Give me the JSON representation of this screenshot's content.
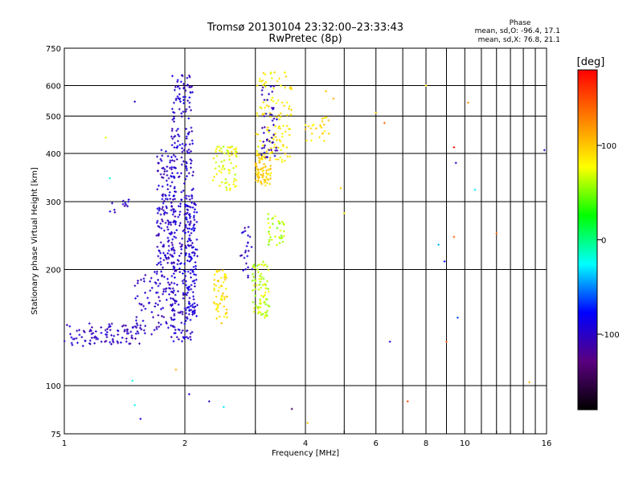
{
  "chart_data": {
    "type": "scatter",
    "title": "Tromsø 20130104 23:32:00–23:33:43",
    "subtitle": "RwPretec (8p)",
    "xlabel": "Frequency [MHz]",
    "ylabel": "Stationary phase Virtual Height [km]",
    "x_scale": "log2",
    "y_scale": "log",
    "xlim": [
      1,
      16
    ],
    "ylim": [
      75,
      750
    ],
    "x_ticks": [
      1,
      2,
      4,
      6,
      8,
      10,
      16
    ],
    "x_tick_labels": [
      "1",
      "2",
      "4",
      "6",
      "8",
      "10",
      "16"
    ],
    "y_ticks": [
      75,
      100,
      200,
      300,
      400,
      500,
      600,
      750
    ],
    "y_tick_labels": [
      "75",
      "100",
      "200",
      "300",
      "400",
      "500",
      "600",
      "750"
    ],
    "grid": true,
    "stats": {
      "heading": "Phase",
      "line_o": "mean, sd,O: -96.4, 17.1",
      "line_x": "mean, sd,X: 76.8, 21.1"
    },
    "colorbar": {
      "title": "[deg]",
      "range": [
        -180,
        180
      ],
      "tick_values": [
        -100,
        0,
        100
      ],
      "tick_labels": [
        "-100",
        "0",
        "100"
      ],
      "stops": [
        "#000000",
        "#5a0080",
        "#0000ff",
        "#00ffff",
        "#00ff00",
        "#ffff00",
        "#ff8000",
        "#ff0000"
      ]
    },
    "clusters": [
      {
        "f": [
          1.0,
          1.2
        ],
        "h": [
          125,
          145
        ],
        "phase": -100,
        "n": 35
      },
      {
        "f": [
          1.2,
          1.55
        ],
        "h": [
          128,
          145
        ],
        "phase": -105,
        "n": 60
      },
      {
        "f": [
          1.3,
          1.45
        ],
        "h": [
          280,
          310
        ],
        "phase": -100,
        "n": 12
      },
      {
        "f": [
          1.5,
          1.7
        ],
        "h": [
          135,
          200
        ],
        "phase": -100,
        "n": 45
      },
      {
        "f": [
          1.7,
          1.9
        ],
        "h": [
          140,
          410
        ],
        "phase": -100,
        "n": 220
      },
      {
        "f": [
          1.85,
          2.1
        ],
        "h": [
          130,
          650
        ],
        "phase": -98,
        "n": 300
      },
      {
        "f": [
          2.0,
          2.15
        ],
        "h": [
          150,
          300
        ],
        "phase": -95,
        "n": 120
      },
      {
        "f": [
          2.35,
          2.55
        ],
        "h": [
          145,
          200
        ],
        "phase": 90,
        "n": 60
      },
      {
        "f": [
          2.35,
          2.7
        ],
        "h": [
          320,
          420
        ],
        "phase": 75,
        "n": 70
      },
      {
        "f": [
          2.75,
          2.95
        ],
        "h": [
          190,
          260
        ],
        "phase": -100,
        "n": 25
      },
      {
        "f": [
          2.95,
          3.25
        ],
        "h": [
          150,
          210
        ],
        "phase": 65,
        "n": 80
      },
      {
        "f": [
          3.0,
          3.3
        ],
        "h": [
          330,
          400
        ],
        "phase": 95,
        "n": 80
      },
      {
        "f": [
          3.2,
          3.55
        ],
        "h": [
          230,
          280
        ],
        "phase": 60,
        "n": 35
      },
      {
        "f": [
          3.0,
          3.7
        ],
        "h": [
          380,
          650
        ],
        "phase": 85,
        "n": 120
      },
      {
        "f": [
          3.1,
          3.4
        ],
        "h": [
          390,
          600
        ],
        "phase": -100,
        "n": 45
      },
      {
        "f": [
          4.0,
          4.6
        ],
        "h": [
          430,
          500
        ],
        "phase": 90,
        "n": 25
      }
    ],
    "isolated_points": [
      {
        "f": 1.27,
        "h": 440,
        "phase": 70
      },
      {
        "f": 1.5,
        "h": 545,
        "phase": -100
      },
      {
        "f": 1.3,
        "h": 345,
        "phase": -20
      },
      {
        "f": 1.48,
        "h": 103,
        "phase": -20
      },
      {
        "f": 1.5,
        "h": 89,
        "phase": -20
      },
      {
        "f": 1.55,
        "h": 82,
        "phase": -90
      },
      {
        "f": 1.9,
        "h": 110,
        "phase": 110
      },
      {
        "f": 2.05,
        "h": 95,
        "phase": -90
      },
      {
        "f": 2.3,
        "h": 91,
        "phase": -100
      },
      {
        "f": 2.5,
        "h": 88,
        "phase": -30
      },
      {
        "f": 3.7,
        "h": 87,
        "phase": -140
      },
      {
        "f": 4.05,
        "h": 80,
        "phase": 100
      },
      {
        "f": 4.5,
        "h": 580,
        "phase": 100
      },
      {
        "f": 4.7,
        "h": 555,
        "phase": 110
      },
      {
        "f": 4.9,
        "h": 325,
        "phase": 100
      },
      {
        "f": 5.0,
        "h": 280,
        "phase": 90
      },
      {
        "f": 6.0,
        "h": 510,
        "phase": 100
      },
      {
        "f": 6.3,
        "h": 480,
        "phase": 140
      },
      {
        "f": 6.5,
        "h": 130,
        "phase": -100
      },
      {
        "f": 7.2,
        "h": 91,
        "phase": 150
      },
      {
        "f": 8.0,
        "h": 600,
        "phase": 90
      },
      {
        "f": 8.6,
        "h": 232,
        "phase": -40
      },
      {
        "f": 8.9,
        "h": 210,
        "phase": -80
      },
      {
        "f": 9.0,
        "h": 130,
        "phase": 150
      },
      {
        "f": 9.4,
        "h": 415,
        "phase": 175
      },
      {
        "f": 9.5,
        "h": 378,
        "phase": -100
      },
      {
        "f": 9.4,
        "h": 243,
        "phase": 140
      },
      {
        "f": 9.6,
        "h": 150,
        "phase": -60
      },
      {
        "f": 10.2,
        "h": 542,
        "phase": 120
      },
      {
        "f": 10.6,
        "h": 322,
        "phase": -30
      },
      {
        "f": 12.0,
        "h": 248,
        "phase": 140
      },
      {
        "f": 14.5,
        "h": 102,
        "phase": 110
      },
      {
        "f": 15.8,
        "h": 408,
        "phase": -100
      }
    ]
  }
}
